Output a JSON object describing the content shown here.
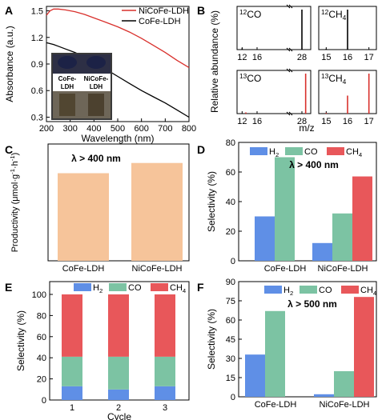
{
  "colors": {
    "ni_line": "#d9302c",
    "co_line": "#000000",
    "h2": "#5f8fe6",
    "co": "#7cc3a3",
    "ch4": "#e8575a",
    "orange": "#f6c49a",
    "bar_black": "#000000",
    "bar_red": "#d9302c"
  },
  "chart_data": [
    {
      "panel": "A",
      "type": "line",
      "xlabel": "Wavelength (nm)",
      "ylabel": "Absorbance (a.u.)",
      "xlim": [
        200,
        800
      ],
      "ylim": [
        0.25,
        1.55
      ],
      "xticks": [
        "200",
        "300",
        "400",
        "500",
        "600",
        "700",
        "800"
      ],
      "yticks": [
        "0.3",
        "0.6",
        "0.9",
        "1.2",
        "1.5"
      ],
      "legend": "top-right",
      "photo_labels": [
        "CoFe-\nLDH",
        "NiCoFe-\nLDH"
      ],
      "series": [
        {
          "name": "NiCoFe-LDH",
          "color_key": "ni_line",
          "x": [
            200,
            215,
            230,
            250,
            280,
            320,
            360,
            400,
            450,
            500,
            550,
            600,
            650,
            700,
            750,
            800
          ],
          "y": [
            1.45,
            1.5,
            1.52,
            1.52,
            1.51,
            1.49,
            1.46,
            1.42,
            1.37,
            1.32,
            1.26,
            1.19,
            1.11,
            1.03,
            0.94,
            0.86
          ]
        },
        {
          "name": "CoFe-LDH",
          "color_key": "co_line",
          "x": [
            200,
            215,
            230,
            250,
            280,
            320,
            360,
            400,
            450,
            500,
            550,
            600,
            650,
            700,
            750,
            800
          ],
          "y": [
            1.14,
            1.13,
            1.12,
            1.1,
            1.07,
            1.03,
            0.98,
            0.92,
            0.84,
            0.76,
            0.68,
            0.6,
            0.53,
            0.46,
            0.38,
            0.3
          ]
        }
      ]
    },
    {
      "panel": "B",
      "type": "bar",
      "ylabel": "Relative abundance (%)",
      "xlabel": "m/z",
      "subplots": [
        {
          "label": "12CO",
          "label_sup": "12",
          "label_main": "CO",
          "color_key": "bar_black",
          "xlim": [
            11.5,
            29.5
          ],
          "xticks": [
            "12",
            "16",
            "28"
          ],
          "x": [
            12,
            28
          ],
          "y": [
            3,
            100
          ]
        },
        {
          "label": "12CH4",
          "label_sup": "12",
          "label_main": "CH",
          "label_sub": "4",
          "color_key": "bar_black",
          "xlim": [
            14.8,
            17.2
          ],
          "xticks": [
            "15",
            "16",
            "17"
          ],
          "x": [
            15,
            16
          ],
          "y": [
            2,
            100
          ]
        },
        {
          "label": "13CO",
          "label_sup": "13",
          "label_main": "CO",
          "color_key": "bar_red",
          "xlim": [
            11.5,
            29.5
          ],
          "xticks": [
            "12",
            "16",
            "28"
          ],
          "x": [
            13,
            29
          ],
          "y": [
            3,
            100
          ]
        },
        {
          "label": "13CH4",
          "label_sup": "13",
          "label_main": "CH",
          "label_sub": "4",
          "color_key": "bar_red",
          "xlim": [
            14.8,
            17.2
          ],
          "xticks": [
            "15",
            "16",
            "17"
          ],
          "x": [
            15,
            16,
            17
          ],
          "y": [
            2,
            45,
            100
          ]
        }
      ]
    },
    {
      "panel": "C",
      "type": "bar",
      "ylabel": "Productivity (μmol·g-1·h-1)",
      "annotation": "λ > 400 nm",
      "categories": [
        "CoFe-LDH",
        "NiCoFe-LDH"
      ],
      "values": [
        60,
        67
      ],
      "ylim": [
        0,
        80
      ],
      "color_key": "orange"
    },
    {
      "panel": "D",
      "type": "bar",
      "ylabel": "Selectivity (%)",
      "annotation": "λ > 400 nm",
      "categories": [
        "CoFe-LDH",
        "NiCoFe-LDH"
      ],
      "ylim": [
        0,
        80
      ],
      "yticks": [
        "0",
        "20",
        "40",
        "60",
        "80"
      ],
      "legend": "top",
      "series": [
        {
          "name": "H2",
          "color_key": "h2",
          "values": [
            30,
            12
          ]
        },
        {
          "name": "CO",
          "color_key": "co",
          "values": [
            70,
            32
          ]
        },
        {
          "name": "CH4",
          "color_key": "ch4",
          "values": [
            0,
            57
          ]
        }
      ]
    },
    {
      "panel": "E",
      "type": "bar",
      "stacked": true,
      "ylabel": "Selectivity (%)",
      "xlabel": "Cycle",
      "categories": [
        "1",
        "2",
        "3"
      ],
      "ylim": [
        0,
        100
      ],
      "yticks": [
        "0",
        "20",
        "40",
        "60",
        "80",
        "100"
      ],
      "legend": "top",
      "series": [
        {
          "name": "H2",
          "color_key": "h2",
          "values": [
            13,
            10,
            13
          ]
        },
        {
          "name": "CO",
          "color_key": "co",
          "values": [
            28,
            31,
            28
          ]
        },
        {
          "name": "CH4",
          "color_key": "ch4",
          "values": [
            59,
            59,
            59
          ]
        }
      ]
    },
    {
      "panel": "F",
      "type": "bar",
      "ylabel": "Selectivity (%)",
      "annotation": "λ > 500 nm",
      "categories": [
        "CoFe-LDH",
        "NiCoFe-LDH"
      ],
      "ylim": [
        0,
        90
      ],
      "yticks": [
        "0",
        "15",
        "30",
        "45",
        "60",
        "75",
        "90"
      ],
      "legend": "top",
      "series": [
        {
          "name": "H2",
          "color_key": "h2",
          "values": [
            33,
            2
          ]
        },
        {
          "name": "CO",
          "color_key": "co",
          "values": [
            67,
            20
          ]
        },
        {
          "name": "CH4",
          "color_key": "ch4",
          "values": [
            0,
            78
          ]
        }
      ]
    }
  ]
}
